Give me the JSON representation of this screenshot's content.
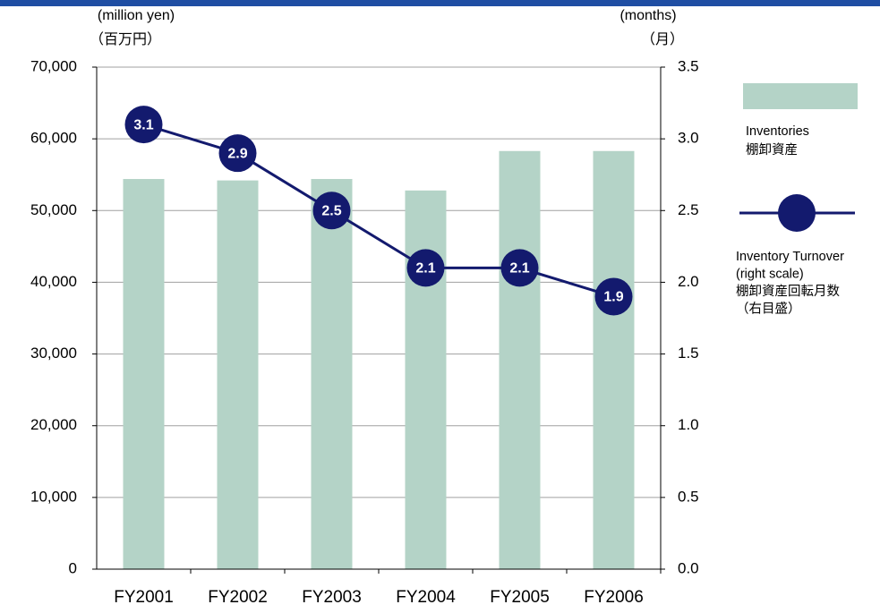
{
  "chart_data": {
    "type": "bar_line",
    "y_label": "(million yen)",
    "y_label_ja": "（百万円）",
    "y2_label": "(months)",
    "y2_label_ja": "（月）",
    "categories": [
      "FY2001",
      "FY2002",
      "FY2003",
      "FY2004",
      "FY2005",
      "FY2006"
    ],
    "series": [
      {
        "name": "Inventories",
        "name_ja": "棚卸資産",
        "type": "bar",
        "color": "#b4d3c7",
        "values": [
          54400,
          54200,
          54400,
          52800,
          58300,
          58300
        ]
      },
      {
        "name": "Inventory Turnover",
        "name_note": "(right scale)",
        "name_ja": "棚卸資産回転月数",
        "name_ja_note": "（右目盛）",
        "type": "line",
        "axis": "y2",
        "color": "#131a6e",
        "values": [
          3.1,
          2.9,
          2.5,
          2.1,
          2.1,
          1.9
        ]
      }
    ],
    "ylim": [
      0,
      70000
    ],
    "yticks": [
      0,
      {
        "value": 10000,
        "label": "10,000"
      },
      {
        "value": 20000,
        "label": "20,000"
      },
      {
        "value": 30000,
        "label": "30,000"
      },
      {
        "value": 40000,
        "label": "40,000"
      },
      {
        "value": 50000,
        "label": "50,000"
      },
      {
        "value": 60000,
        "label": "60,000"
      },
      {
        "value": 70000,
        "label": "70,000"
      }
    ],
    "y2lim": [
      0,
      3.5
    ],
    "y2ticks": [
      {
        "value": 0,
        "label": "0.0"
      },
      0.5,
      {
        "value": 1,
        "label": "1.0"
      },
      1.5,
      {
        "value": 2,
        "label": "2.0"
      },
      2.5,
      {
        "value": 3,
        "label": "3.0"
      },
      3.5
    ],
    "grid": true
  }
}
